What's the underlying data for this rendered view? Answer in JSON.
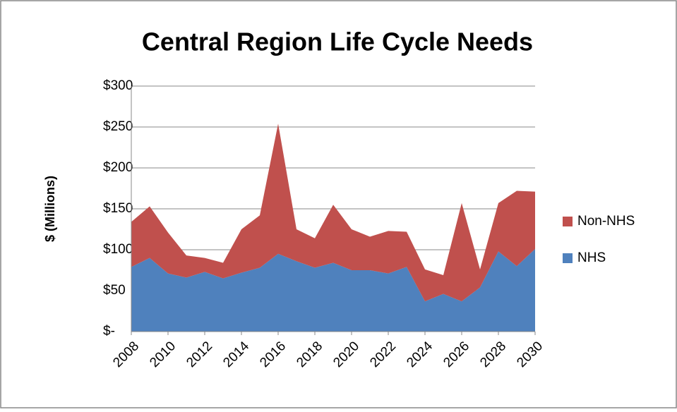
{
  "chart_data": {
    "type": "stacked_area",
    "title": "Central Region Life Cycle Needs",
    "y_label": "$ (Millions)",
    "x": [
      2008,
      2009,
      2010,
      2011,
      2012,
      2013,
      2014,
      2015,
      2016,
      2017,
      2018,
      2019,
      2020,
      2021,
      2022,
      2023,
      2024,
      2025,
      2026,
      2027,
      2028,
      2029,
      2030
    ],
    "xlim": [
      2008,
      2030
    ],
    "xticks": [
      2008,
      2010,
      2012,
      2014,
      2016,
      2018,
      2020,
      2022,
      2024,
      2026,
      2028,
      2030
    ],
    "ylim": [
      0,
      300
    ],
    "yticks": [
      {
        "value": 0,
        "label": "$-"
      },
      {
        "value": 50,
        "label": "$50"
      },
      {
        "value": 100,
        "label": "$100"
      },
      {
        "value": 150,
        "label": "$150"
      },
      {
        "value": 200,
        "label": "$200"
      },
      {
        "value": 250,
        "label": "$250"
      },
      {
        "value": 300,
        "label": "$300"
      }
    ],
    "grid": true,
    "legend": "right",
    "series": [
      {
        "name": "NHS",
        "color": "#4f81bd",
        "values": [
          79,
          90,
          71,
          66,
          73,
          65,
          72,
          78,
          95,
          86,
          78,
          84,
          75,
          75,
          71,
          79,
          37,
          46,
          37,
          54,
          98,
          80,
          101
        ]
      },
      {
        "name": "Non-NHS",
        "color": "#c0504d",
        "values": [
          55,
          63,
          50,
          27,
          17,
          19,
          53,
          64,
          159,
          39,
          36,
          71,
          50,
          41,
          52,
          43,
          39,
          23,
          120,
          22,
          59,
          92,
          70
        ]
      }
    ]
  }
}
